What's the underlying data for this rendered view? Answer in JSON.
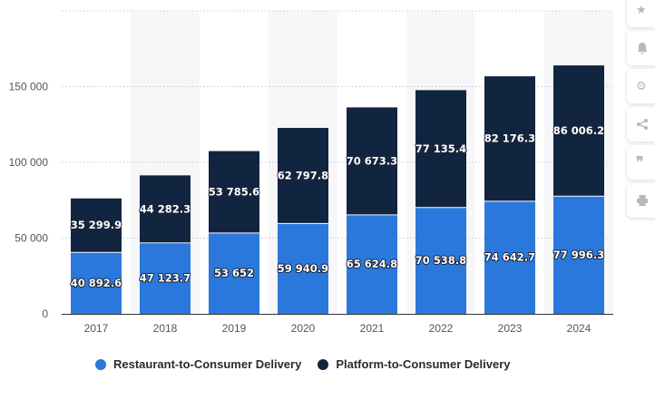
{
  "chart_data": {
    "type": "bar",
    "stacked": true,
    "categories": [
      "2017",
      "2018",
      "2019",
      "2020",
      "2021",
      "2022",
      "2023",
      "2024"
    ],
    "series": [
      {
        "name": "Restaurant-to-Consumer Delivery",
        "color": "#2b78dc",
        "values": [
          40892.6,
          47123.7,
          53652,
          59940.9,
          65624.8,
          70538.8,
          74642.7,
          77996.3
        ],
        "labels": [
          "40 892.6",
          "47 123.7",
          "53 652",
          "59 940.9",
          "65 624.8",
          "70 538.8",
          "74 642.7",
          "77 996.3"
        ]
      },
      {
        "name": "Platform-to-Consumer Delivery",
        "color": "#112540",
        "values": [
          35299.9,
          44282.3,
          53785.6,
          62797.8,
          70673.3,
          77135.4,
          82176.3,
          86006.2
        ],
        "labels": [
          "35 299.9",
          "44 282.3",
          "53 785.6",
          "62 797.8",
          "70 673.3",
          "77 135.4",
          "82 176.3",
          "86 006.2"
        ]
      }
    ],
    "ylim": [
      0,
      200000
    ],
    "yticks": [
      0,
      50000,
      100000,
      150000
    ],
    "ytick_labels": [
      "0",
      "50 000",
      "100 000",
      "150 000"
    ],
    "grid": true,
    "legend_position": "bottom"
  },
  "toolbar": {
    "icons": [
      "star-icon",
      "bell-icon",
      "gear-icon",
      "share-icon",
      "quote-icon",
      "print-icon"
    ]
  }
}
